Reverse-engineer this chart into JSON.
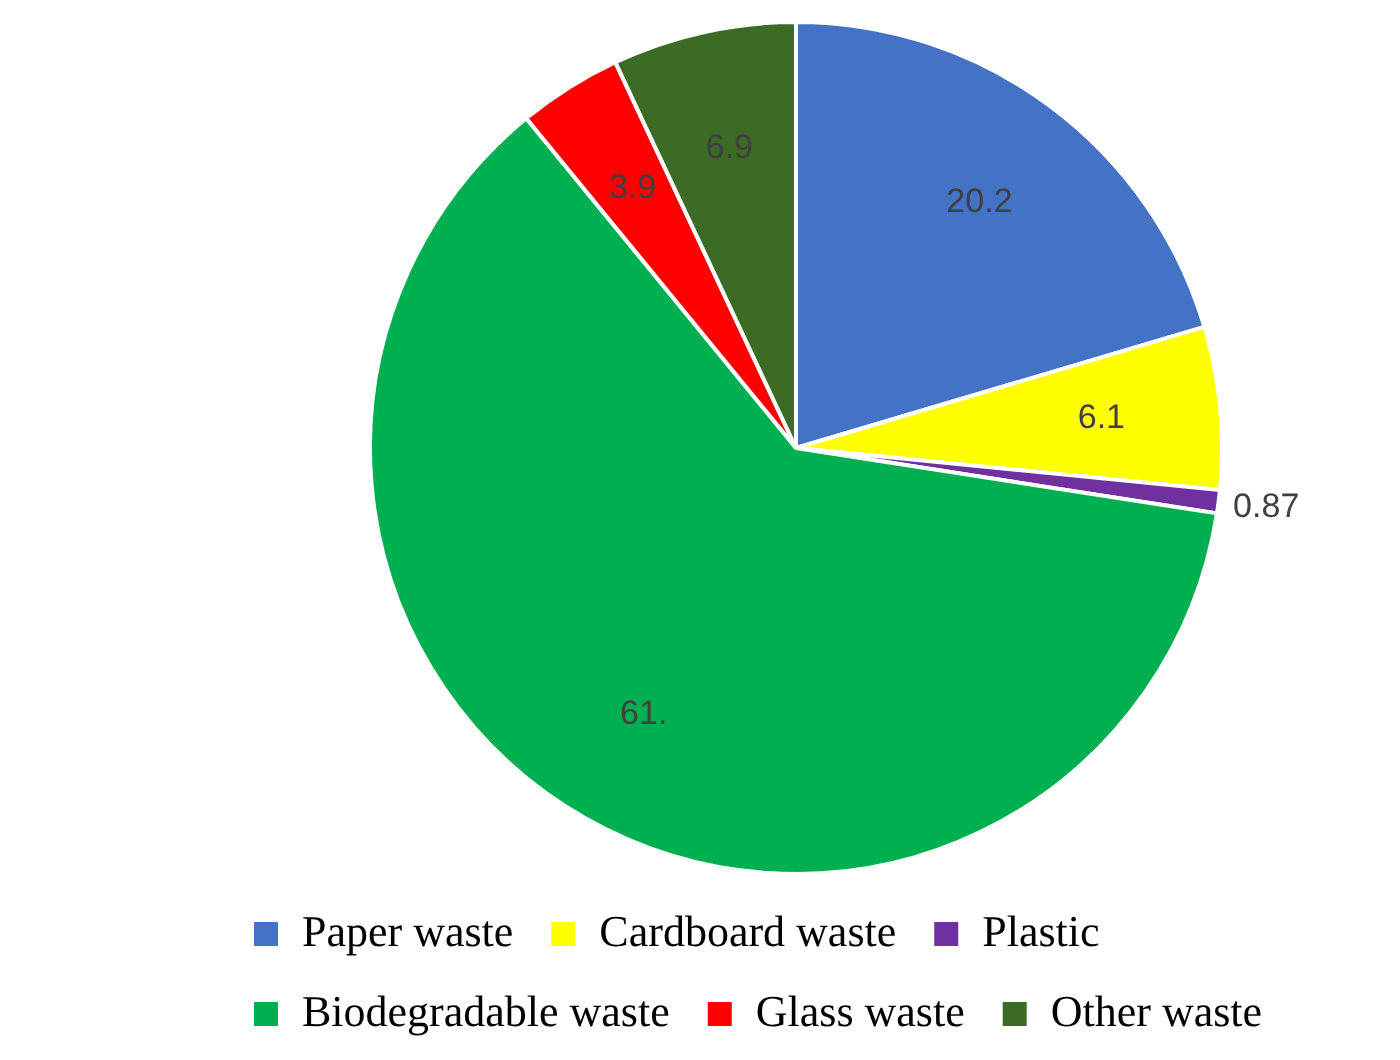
{
  "chart_data": {
    "type": "pie",
    "categories": [
      "Paper waste",
      "Cardboard waste",
      "Plastic",
      "Biodegradable waste",
      "Glass waste",
      "Other waste"
    ],
    "values": [
      20.2,
      6.1,
      0.87,
      61,
      3.9,
      6.9
    ],
    "value_labels": [
      "20.2",
      "6.1",
      "0.87",
      "61.",
      "3.9",
      "6.9"
    ],
    "colors": [
      "#4472c4",
      "#ffff00",
      "#7030a0",
      "#00b050",
      "#ff0000",
      "#3c6b26"
    ],
    "legend": "bottom"
  }
}
